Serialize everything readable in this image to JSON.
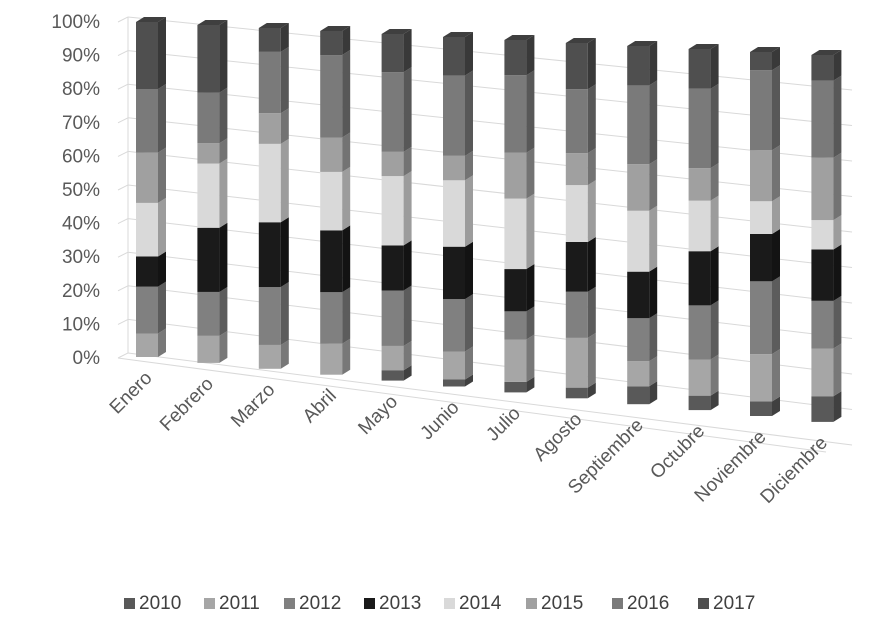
{
  "chart_data": {
    "type": "bar",
    "stacked": "percent",
    "three_d": true,
    "title": "",
    "xlabel": "",
    "ylabel": "",
    "ylim": [
      0,
      100
    ],
    "y_ticks": [
      "0%",
      "10%",
      "20%",
      "30%",
      "40%",
      "50%",
      "60%",
      "70%",
      "80%",
      "90%",
      "100%"
    ],
    "grid": true,
    "legend_position": "bottom",
    "categories": [
      "Enero",
      "Febrero",
      "Marzo",
      "Abril",
      "Mayo",
      "Junio",
      "Julio",
      "Agosto",
      "Septiembre",
      "Octubre",
      "Noviembre",
      "Diciembre"
    ],
    "series": [
      {
        "name": "2010",
        "color": "#595959",
        "values": [
          0,
          0,
          0,
          0,
          3,
          2,
          3,
          3,
          5,
          4,
          4,
          7
        ]
      },
      {
        "name": "2011",
        "color": "#a6a6a6",
        "values": [
          7,
          8,
          7,
          9,
          7,
          8,
          12,
          14,
          7,
          10,
          13,
          13
        ]
      },
      {
        "name": "2012",
        "color": "#808080",
        "values": [
          14,
          13,
          17,
          15,
          16,
          15,
          8,
          13,
          12,
          15,
          20,
          13
        ]
      },
      {
        "name": "2013",
        "color": "#1a1a1a",
        "values": [
          9,
          19,
          19,
          18,
          13,
          15,
          12,
          14,
          13,
          15,
          13,
          14
        ]
      },
      {
        "name": "2014",
        "color": "#d9d9d9",
        "values": [
          16,
          19,
          23,
          17,
          20,
          19,
          20,
          16,
          17,
          14,
          9,
          8
        ]
      },
      {
        "name": "2015",
        "color": "#a0a0a0",
        "values": [
          15,
          6,
          9,
          10,
          7,
          7,
          13,
          9,
          13,
          9,
          14,
          17
        ]
      },
      {
        "name": "2016",
        "color": "#7a7a7a",
        "values": [
          19,
          15,
          18,
          24,
          23,
          23,
          22,
          18,
          22,
          22,
          22,
          21
        ]
      },
      {
        "name": "2017",
        "color": "#4f4f4f",
        "values": [
          20,
          20,
          7,
          7,
          11,
          11,
          10,
          13,
          11,
          11,
          5,
          7
        ]
      }
    ]
  }
}
